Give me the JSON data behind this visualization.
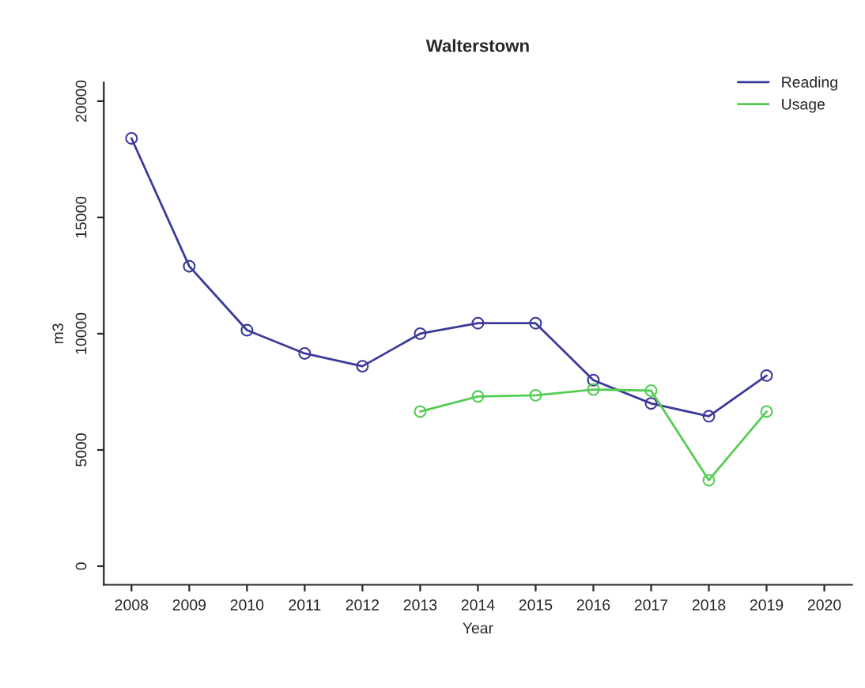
{
  "chart_data": {
    "type": "line",
    "title": "Walterstown",
    "xlabel": "Year",
    "ylabel": "m3",
    "x": [
      2008,
      2009,
      2010,
      2011,
      2012,
      2013,
      2014,
      2015,
      2016,
      2017,
      2018,
      2019
    ],
    "series": [
      {
        "name": "Reading",
        "color": "#3a3a9a",
        "values": [
          18400,
          12900,
          10150,
          9150,
          8600,
          10000,
          10450,
          10450,
          8000,
          7000,
          6450,
          8200
        ]
      },
      {
        "name": "Usage",
        "color": "#55cc55",
        "values": [
          null,
          null,
          null,
          null,
          null,
          6650,
          7300,
          7350,
          7600,
          7550,
          3700,
          6650
        ]
      }
    ],
    "xlim": [
      2007.52,
      2020.48
    ],
    "xticks": [
      2008,
      2009,
      2010,
      2011,
      2012,
      2013,
      2014,
      2015,
      2016,
      2017,
      2018,
      2019,
      2020
    ],
    "ylim": [
      -800,
      20800
    ],
    "yticks": [
      0,
      5000,
      10000,
      15000,
      20000
    ],
    "grid": false,
    "legend": "top right",
    "marker": "circle",
    "line_style": "solid"
  }
}
